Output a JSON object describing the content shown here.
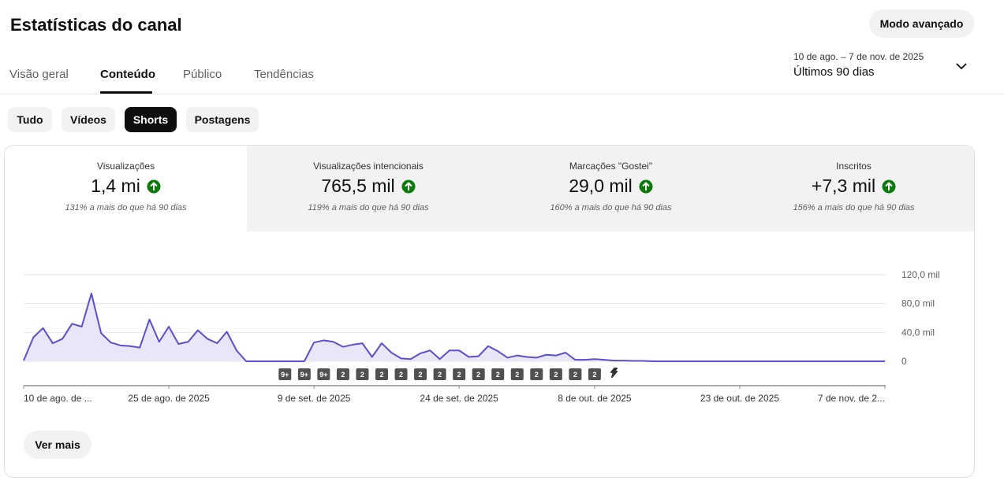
{
  "header": {
    "title": "Estatísticas do canal",
    "advanced_button": "Modo avançado"
  },
  "tabs": [
    "Visão geral",
    "Conteúdo",
    "Público",
    "Tendências"
  ],
  "date_range": {
    "range": "10 de ago. – 7 de nov. de 2025",
    "preset": "Últimos 90 dias"
  },
  "filters": [
    "Tudo",
    "Vídeos",
    "Shorts",
    "Postagens"
  ],
  "metrics": [
    {
      "label": "Visualizações",
      "value": "1,4 mi",
      "note": "131% a mais do que há 90 dias"
    },
    {
      "label": "Visualizações intencionais",
      "value": "765,5 mil",
      "note": "119% a mais do que há 90 dias"
    },
    {
      "label": "Marcações \"Gostei\"",
      "value": "29,0 mil",
      "note": "160% a mais do que há 90 dias"
    },
    {
      "label": "Inscritos",
      "value": "+7,3 mil",
      "note": "156% a mais do que há 90 dias"
    }
  ],
  "chart_data": {
    "type": "area",
    "color": "#5b4fd1",
    "fill": "#e8e6f7",
    "grid": true,
    "categories": [
      "10 de ago. de ...",
      null,
      null,
      null,
      null,
      null,
      null,
      null,
      null,
      null,
      null,
      null,
      null,
      null,
      null,
      "25 de ago. de 2025",
      null,
      null,
      null,
      null,
      null,
      null,
      null,
      null,
      null,
      null,
      null,
      null,
      null,
      null,
      "9 de set. de 2025",
      null,
      null,
      null,
      null,
      null,
      null,
      null,
      null,
      null,
      null,
      null,
      null,
      null,
      null,
      "24 de set. de 2025",
      null,
      null,
      null,
      null,
      null,
      null,
      null,
      null,
      null,
      null,
      null,
      null,
      null,
      "8 de out. de 2025",
      null,
      null,
      null,
      null,
      null,
      null,
      null,
      null,
      null,
      null,
      null,
      null,
      null,
      null,
      "23 de out. de 2025",
      null,
      null,
      null,
      null,
      null,
      null,
      null,
      null,
      null,
      null,
      null,
      null,
      null,
      null,
      "7 de nov. de 2..."
    ],
    "values": [
      1000,
      33000,
      46000,
      25000,
      31000,
      52000,
      48000,
      94000,
      39000,
      26000,
      22000,
      21000,
      19000,
      58000,
      27000,
      48000,
      24000,
      27000,
      43000,
      31000,
      25000,
      41000,
      15000,
      0,
      0,
      0,
      0,
      0,
      0,
      0,
      26000,
      29000,
      27000,
      20000,
      23000,
      25000,
      6000,
      25000,
      12000,
      4000,
      3000,
      11000,
      15000,
      3000,
      15000,
      15000,
      6000,
      7000,
      21000,
      14000,
      5000,
      8000,
      6000,
      5000,
      9000,
      8000,
      12000,
      2000,
      2000,
      3000,
      2000,
      1000,
      1000,
      500,
      500,
      0,
      0,
      0,
      0,
      0,
      0,
      0,
      0,
      0,
      0,
      0,
      0,
      0,
      0,
      0,
      0,
      0,
      0,
      0,
      0,
      0,
      0,
      0,
      0,
      0
    ],
    "ylim": [
      0,
      120000
    ],
    "yticks": [
      0,
      {
        "value": 40000,
        "label": "40,0 mil"
      },
      {
        "value": 80000,
        "label": "80,0 mil"
      },
      {
        "value": 120000,
        "label": "120,0 mil"
      }
    ],
    "markers": [
      "9+",
      "9+",
      "9+",
      "2",
      "2",
      "2",
      "2",
      "2",
      "2",
      "2",
      "2",
      "2",
      "2",
      "2",
      "2",
      "2",
      "2"
    ]
  },
  "more_button": "Ver mais"
}
